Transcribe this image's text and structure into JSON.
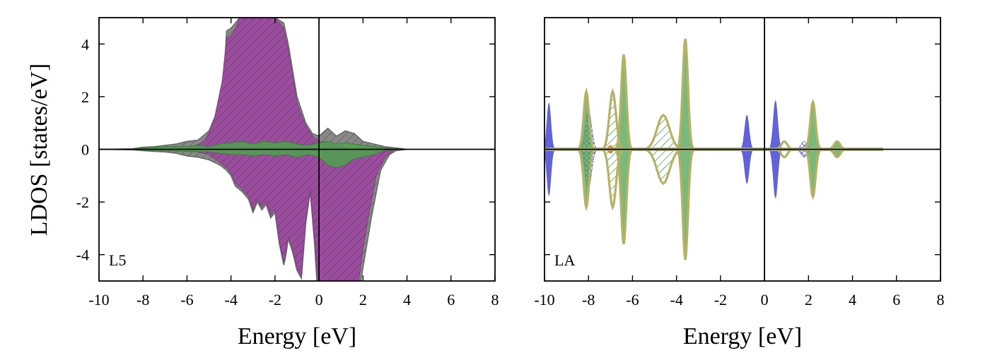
{
  "chart_data": {
    "type": "area",
    "ylabel": "LDOS [states/eV]",
    "colors": {
      "magenta": "#9b4a9e",
      "green": "#4ea24e",
      "gray": "#888888",
      "blue": "#5a5ad8",
      "olive": "#b5b266",
      "orange": "#d08a3a"
    },
    "panels": [
      {
        "label": "L5",
        "xlabel": "Energy [eV]",
        "xlim": [
          -10,
          8
        ],
        "ylim": [
          -5,
          5
        ],
        "xticks": [
          -10,
          -8,
          -6,
          -4,
          -2,
          0,
          2,
          4,
          6,
          8
        ],
        "yticks": [
          4,
          2,
          0,
          -2,
          -4
        ],
        "show_y_ticklabels": true,
        "series": [
          {
            "name": "total (gray)",
            "color": "#888888",
            "upper": [
              [
                -10,
                0
              ],
              [
                -8.5,
                0.02
              ],
              [
                -8,
                0.08
              ],
              [
                -7.5,
                0.1
              ],
              [
                -7,
                0.15
              ],
              [
                -6.5,
                0.2
              ],
              [
                -6,
                0.3
              ],
              [
                -5.5,
                0.35
              ],
              [
                -5,
                0.7
              ],
              [
                -4.6,
                1.5
              ],
              [
                -4.3,
                3.0
              ],
              [
                -4.2,
                4.5
              ],
              [
                -4.0,
                4.6
              ],
              [
                -3.8,
                4.8
              ],
              [
                -3.6,
                5.0
              ],
              [
                -3.2,
                5.0
              ],
              [
                -2.8,
                5.0
              ],
              [
                -2.4,
                5.0
              ],
              [
                -2.0,
                5.0
              ],
              [
                -1.6,
                4.8
              ],
              [
                -1.4,
                4.0
              ],
              [
                -1.2,
                3.0
              ],
              [
                -1.0,
                2.0
              ],
              [
                -0.8,
                1.5
              ],
              [
                -0.6,
                1.0
              ],
              [
                -0.3,
                0.6
              ],
              [
                0,
                0.5
              ],
              [
                0.4,
                0.8
              ],
              [
                0.8,
                0.5
              ],
              [
                1.2,
                0.7
              ],
              [
                1.6,
                0.6
              ],
              [
                2.0,
                0.3
              ],
              [
                2.5,
                0.2
              ],
              [
                3.0,
                0.1
              ],
              [
                3.5,
                0.05
              ],
              [
                4,
                0
              ]
            ],
            "lower": [
              [
                -10,
                0
              ],
              [
                -8.5,
                -0.02
              ],
              [
                -8,
                -0.05
              ],
              [
                -7.5,
                -0.08
              ],
              [
                -7,
                -0.1
              ],
              [
                -6.5,
                -0.15
              ],
              [
                -6,
                -0.25
              ],
              [
                -5.5,
                -0.3
              ],
              [
                -5,
                -0.4
              ],
              [
                -4.5,
                -0.6
              ],
              [
                -4.2,
                -0.8
              ],
              [
                -4.0,
                -1.0
              ],
              [
                -3.8,
                -1.4
              ],
              [
                -3.5,
                -1.6
              ],
              [
                -3.2,
                -1.9
              ],
              [
                -3.0,
                -2.4
              ],
              [
                -2.8,
                -2.0
              ],
              [
                -2.6,
                -2.3
              ],
              [
                -2.4,
                -2.1
              ],
              [
                -2.2,
                -2.6
              ],
              [
                -2.0,
                -2.4
              ],
              [
                -1.8,
                -3.6
              ],
              [
                -1.6,
                -4.4
              ],
              [
                -1.5,
                -4.0
              ],
              [
                -1.4,
                -3.4
              ],
              [
                -1.2,
                -3.9
              ],
              [
                -1.0,
                -4.6
              ],
              [
                -0.8,
                -4.9
              ],
              [
                -0.6,
                -2.8
              ],
              [
                -0.4,
                -1.6
              ],
              [
                -0.2,
                -3.6
              ],
              [
                -0.1,
                -5.0
              ],
              [
                0.3,
                -5.0
              ],
              [
                0.7,
                -5.0
              ],
              [
                1.1,
                -5.0
              ],
              [
                1.5,
                -5.0
              ],
              [
                1.9,
                -5.0
              ],
              [
                2.1,
                -4.0
              ],
              [
                2.4,
                -2.5
              ],
              [
                2.8,
                -0.8
              ],
              [
                3.2,
                -0.2
              ],
              [
                3.5,
                -0.05
              ],
              [
                4,
                0
              ]
            ]
          },
          {
            "name": "magenta",
            "color": "#9b4a9e",
            "upper": [
              [
                -6,
                0
              ],
              [
                -5.2,
                0.3
              ],
              [
                -4.8,
                1.0
              ],
              [
                -4.4,
                2.6
              ],
              [
                -4.2,
                4.2
              ],
              [
                -4.0,
                4.3
              ],
              [
                -3.8,
                4.6
              ],
              [
                -3.6,
                5.0
              ],
              [
                -3.2,
                5.0
              ],
              [
                -2.8,
                5.0
              ],
              [
                -2.4,
                5.0
              ],
              [
                -2.0,
                5.0
              ],
              [
                -1.6,
                4.6
              ],
              [
                -1.4,
                3.8
              ],
              [
                -1.2,
                2.8
              ],
              [
                -1.0,
                1.8
              ],
              [
                -0.8,
                1.3
              ],
              [
                -0.6,
                0.9
              ],
              [
                -0.3,
                0.5
              ],
              [
                0,
                0.3
              ],
              [
                0.5,
                0.2
              ],
              [
                1.0,
                0.1
              ],
              [
                1.5,
                0
              ],
              [
                2.0,
                0
              ]
            ],
            "lower": [
              [
                -6,
                0
              ],
              [
                -5,
                -0.2
              ],
              [
                -4.5,
                -0.5
              ],
              [
                -4.2,
                -0.7
              ],
              [
                -4.0,
                -0.9
              ],
              [
                -3.8,
                -1.3
              ],
              [
                -3.5,
                -1.5
              ],
              [
                -3.2,
                -1.8
              ],
              [
                -3.0,
                -2.3
              ],
              [
                -2.8,
                -1.9
              ],
              [
                -2.6,
                -2.2
              ],
              [
                -2.4,
                -2.0
              ],
              [
                -2.2,
                -2.5
              ],
              [
                -2.0,
                -2.3
              ],
              [
                -1.8,
                -3.5
              ],
              [
                -1.6,
                -4.3
              ],
              [
                -1.5,
                -3.9
              ],
              [
                -1.4,
                -3.3
              ],
              [
                -1.2,
                -3.8
              ],
              [
                -1.0,
                -4.5
              ],
              [
                -0.8,
                -4.8
              ],
              [
                -0.6,
                -2.7
              ],
              [
                -0.4,
                -1.5
              ],
              [
                -0.2,
                -3.5
              ],
              [
                -0.05,
                -5.0
              ],
              [
                0.3,
                -5.0
              ],
              [
                0.7,
                -5.0
              ],
              [
                1.1,
                -5.0
              ],
              [
                1.5,
                -5.0
              ],
              [
                1.8,
                -5.0
              ],
              [
                2.0,
                -3.8
              ],
              [
                2.3,
                -2.3
              ],
              [
                2.6,
                -1.0
              ],
              [
                3.0,
                -0.3
              ],
              [
                3.4,
                0
              ]
            ]
          },
          {
            "name": "green",
            "color": "#4ea24e",
            "upper": [
              [
                -8.5,
                0
              ],
              [
                -8,
                0.05
              ],
              [
                -7,
                0.1
              ],
              [
                -6,
                0.1
              ],
              [
                -5.5,
                0.15
              ],
              [
                -5,
                0.1
              ],
              [
                -4.5,
                0.2
              ],
              [
                -4,
                0.25
              ],
              [
                -3.5,
                0.3
              ],
              [
                -3,
                0.2
              ],
              [
                -2.5,
                0.3
              ],
              [
                -2,
                0.25
              ],
              [
                -1.5,
                0.3
              ],
              [
                -1,
                0.2
              ],
              [
                -0.5,
                0.15
              ],
              [
                0,
                0.25
              ],
              [
                0.4,
                0.3
              ],
              [
                0.8,
                0.2
              ],
              [
                1.2,
                0.25
              ],
              [
                1.6,
                0.2
              ],
              [
                2.0,
                0.15
              ],
              [
                2.5,
                0.1
              ],
              [
                3,
                0.05
              ],
              [
                3.5,
                0
              ]
            ],
            "lower": [
              [
                -8.5,
                0
              ],
              [
                -8,
                -0.03
              ],
              [
                -7,
                -0.05
              ],
              [
                -6,
                -0.08
              ],
              [
                -5.5,
                -0.1
              ],
              [
                -5,
                -0.1
              ],
              [
                -4.5,
                -0.15
              ],
              [
                -4,
                -0.2
              ],
              [
                -3.5,
                -0.2
              ],
              [
                -3,
                -0.25
              ],
              [
                -2.5,
                -0.2
              ],
              [
                -2,
                -0.25
              ],
              [
                -1.5,
                -0.2
              ],
              [
                -1,
                -0.3
              ],
              [
                -0.5,
                -0.2
              ],
              [
                0,
                -0.3
              ],
              [
                0.4,
                -0.6
              ],
              [
                0.8,
                -0.7
              ],
              [
                1.2,
                -0.6
              ],
              [
                1.6,
                -0.35
              ],
              [
                2.0,
                -0.3
              ],
              [
                2.5,
                -0.2
              ],
              [
                3,
                -0.05
              ],
              [
                3.5,
                0
              ]
            ]
          }
        ]
      },
      {
        "label": "LA",
        "xlabel": "Energy [eV]",
        "xlim": [
          -10,
          8
        ],
        "ylim": [
          -5,
          5
        ],
        "xticks": [
          -10,
          -8,
          -6,
          -4,
          -2,
          0,
          2,
          4,
          6,
          8
        ],
        "yticks": [
          4,
          2,
          0,
          -2,
          -4
        ],
        "show_y_ticklabels": false,
        "series": [
          {
            "name": "blue",
            "color": "#5a5ad8",
            "peaks": [
              {
                "center": -9.8,
                "height": 1.75,
                "width": 0.2
              },
              {
                "center": -8.0,
                "height": 1.5,
                "width": 0.3
              },
              {
                "center": -0.8,
                "height": 1.3,
                "width": 0.22
              },
              {
                "center": 0.5,
                "height": 1.85,
                "width": 0.22
              },
              {
                "center": 1.8,
                "height": 0.3,
                "width": 0.3
              }
            ]
          },
          {
            "name": "green",
            "color": "#4ea24e",
            "peaks": [
              {
                "center": -8.1,
                "height": 2.2,
                "width": 0.25
              },
              {
                "center": -6.9,
                "height": 2.2,
                "width": 0.32
              },
              {
                "center": -6.4,
                "height": 3.6,
                "width": 0.25
              },
              {
                "center": -4.6,
                "height": 1.3,
                "width": 0.6
              },
              {
                "center": -3.6,
                "height": 4.2,
                "width": 0.25
              },
              {
                "center": 2.2,
                "height": 1.8,
                "width": 0.25
              },
              {
                "center": 3.3,
                "height": 0.3,
                "width": 0.3
              }
            ]
          },
          {
            "name": "olive",
            "color": "#b5b266",
            "peaks": [
              {
                "center": -8.1,
                "height": 2.2,
                "width": 0.26
              },
              {
                "center": -6.9,
                "height": 2.2,
                "width": 0.33
              },
              {
                "center": -6.4,
                "height": 3.6,
                "width": 0.26
              },
              {
                "center": -4.6,
                "height": 1.3,
                "width": 0.62
              },
              {
                "center": -3.6,
                "height": 4.2,
                "width": 0.26
              },
              {
                "center": 0.9,
                "height": 0.3,
                "width": 0.3
              },
              {
                "center": 2.2,
                "height": 1.8,
                "width": 0.26
              },
              {
                "center": 3.3,
                "height": 0.3,
                "width": 0.3
              }
            ]
          },
          {
            "name": "orange",
            "color": "#d08a3a",
            "peaks": [
              {
                "center": -7.0,
                "height": 0.15,
                "width": 0.2
              }
            ]
          }
        ],
        "baseline_xrange": [
          -10,
          5.4
        ]
      }
    ]
  }
}
